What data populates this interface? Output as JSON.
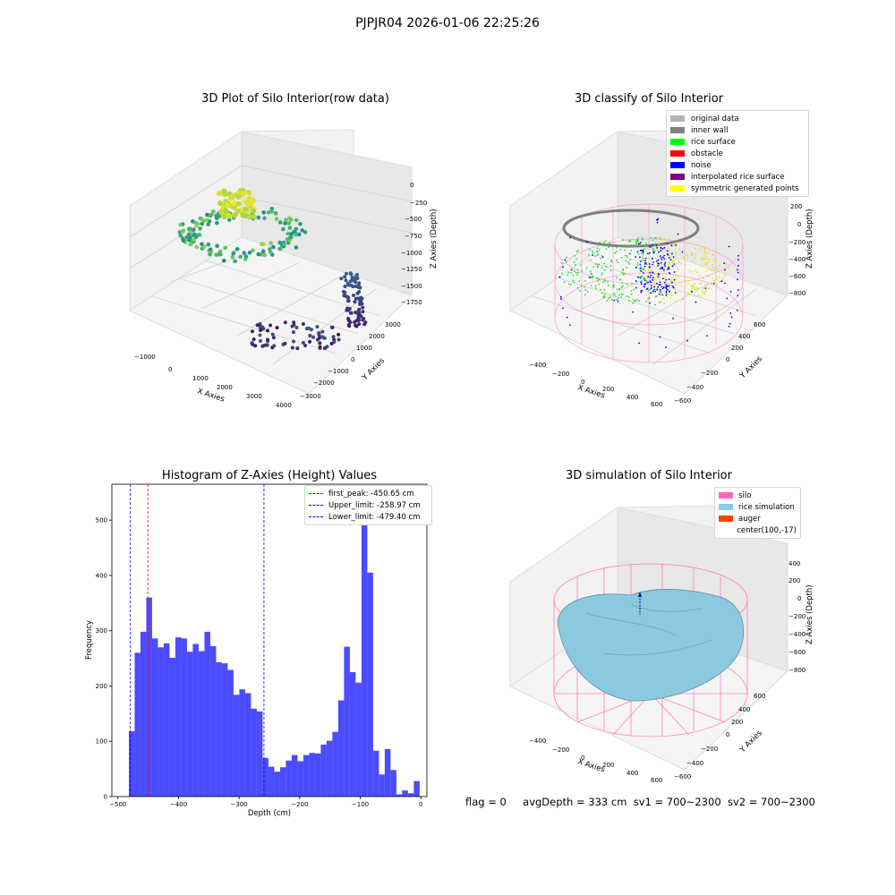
{
  "suptitle": "PJPJR04 2026-01-06 22:25:26",
  "footer": {
    "flag": "flag = 0",
    "avgDepth": "avgDepth = 333 cm",
    "sv1": "sv1 = 700~2300",
    "sv2": "sv2 = 700~2300"
  },
  "panels": {
    "p1": {
      "title": "3D Plot of Silo Interior(row data)",
      "xlabel": "X Axies",
      "ylabel": "Y Axies",
      "zlabel": "Z Axies (Depth)",
      "xticks": [
        "−1000",
        "0",
        "1000",
        "2000",
        "3000",
        "4000"
      ],
      "yticks": [
        "3000",
        "2000",
        "1000",
        "0",
        "−1000",
        "−2000",
        "−3000"
      ],
      "zticks": [
        "0",
        "−250",
        "−500",
        "−750",
        "−1000",
        "−1250",
        "−1500",
        "−1750"
      ]
    },
    "p2": {
      "title": "3D classify of Silo Interior",
      "xlabel": "X Axies",
      "ylabel": "Y Axies",
      "zlabel": "Z Axies (Depth)",
      "xticks": [
        "−400",
        "−200",
        "0",
        "200",
        "400",
        "600"
      ],
      "yticks": [
        "600",
        "400",
        "200",
        "0",
        "−200",
        "−400",
        "−600"
      ],
      "zticks": [
        "200",
        "0",
        "−200",
        "−400",
        "−600",
        "−800"
      ],
      "legend": [
        {
          "label": "original data",
          "color": "#b3b3b3"
        },
        {
          "label": "inner wall",
          "color": "#808080"
        },
        {
          "label": "rice surface",
          "color": "#00ff00"
        },
        {
          "label": "obstacle",
          "color": "#ff0000"
        },
        {
          "label": "noise",
          "color": "#0000ff"
        },
        {
          "label": "interpolated rice surface",
          "color": "#800080"
        },
        {
          "label": "symmetric generated points",
          "color": "#ffff00"
        }
      ]
    },
    "p4": {
      "title": "3D simulation of Silo Interior",
      "xlabel": "X Axies",
      "ylabel": "Y Axies",
      "zlabel": "Z Axies (Depth)",
      "xticks": [
        "−400",
        "−200",
        "0",
        "200",
        "400",
        "600"
      ],
      "yticks": [
        "600",
        "400",
        "200",
        "0",
        "−200",
        "−400",
        "−600"
      ],
      "zticks": [
        "400",
        "200",
        "0",
        "−200",
        "−400",
        "−600",
        "−800"
      ],
      "legend": [
        {
          "label": "silo",
          "color": "#ff69b4"
        },
        {
          "label": "rice simulation",
          "color": "#87ceeb"
        },
        {
          "label": "auger",
          "color": "#ff4500"
        },
        {
          "label": "center(100,-17)",
          "color": ""
        }
      ]
    }
  },
  "chart_data": {
    "type": "bar",
    "title": "Histogram of Z-Axies (Height) Values",
    "xlabel": "Depth (cm)",
    "ylabel": "Frequency",
    "xlim": [
      -510,
      10
    ],
    "ylim": [
      0,
      565
    ],
    "xticks": [
      -500,
      -400,
      -300,
      -200,
      -100,
      0
    ],
    "yticks": [
      0,
      100,
      200,
      300,
      400,
      500
    ],
    "color": "#4b4bff",
    "bins": {
      "start": -482,
      "width": 9.6,
      "values": [
        118,
        260,
        298,
        360,
        286,
        270,
        277,
        251,
        288,
        286,
        262,
        276,
        263,
        298,
        272,
        243,
        241,
        229,
        184,
        194,
        187,
        159,
        154,
        70,
        54,
        45,
        53,
        65,
        75,
        64,
        75,
        79,
        78,
        94,
        101,
        117,
        174,
        271,
        225,
        206,
        540,
        405,
        83,
        40,
        86,
        48,
        4,
        11,
        6,
        28
      ]
    },
    "lines": [
      {
        "label": "first_peak: -450.65 cm",
        "x": -450.65,
        "color": "#ff0000"
      },
      {
        "label": "Upper_limit: -258.97 cm",
        "x": -258.97,
        "color": "#0000ff"
      },
      {
        "label": "Lower_limit: -479.40 cm",
        "x": -479.4,
        "color": "#0000ff"
      }
    ]
  }
}
